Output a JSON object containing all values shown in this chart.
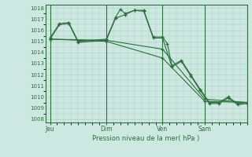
{
  "xlabel": "Pression niveau de la mer( hPa )",
  "ylim": [
    1008,
    1018
  ],
  "yticks": [
    1008,
    1009,
    1010,
    1011,
    1012,
    1013,
    1014,
    1015,
    1016,
    1017,
    1018
  ],
  "bg_color": "#cce8e0",
  "grid_color": "#aaccC4",
  "line_color": "#2d6e3e",
  "xtick_labels": [
    "Jeu",
    "Dim",
    "Ven",
    "Sam"
  ],
  "xtick_positions": [
    0,
    24,
    48,
    66
  ],
  "xlim": [
    -2,
    84
  ],
  "vlines": [
    0,
    24,
    48,
    66
  ],
  "series1_x": [
    0,
    4,
    8,
    12,
    24,
    28,
    30,
    32,
    36,
    40,
    44,
    48,
    50,
    52,
    56,
    60,
    64,
    68,
    72,
    76,
    80,
    84
  ],
  "series1_y": [
    1015.3,
    1016.6,
    1016.7,
    1015.0,
    1015.2,
    1017.2,
    1017.9,
    1017.5,
    1017.8,
    1017.8,
    1015.4,
    1015.4,
    1014.8,
    1012.8,
    1013.3,
    1012.0,
    1010.7,
    1009.5,
    1009.5,
    1010.0,
    1009.4,
    1009.5
  ],
  "series2_x": [
    0,
    24,
    48,
    66,
    84
  ],
  "series2_y": [
    1015.2,
    1015.1,
    1014.3,
    1009.8,
    1009.5
  ],
  "series3_x": [
    0,
    24,
    48,
    66,
    84
  ],
  "series3_y": [
    1015.2,
    1015.0,
    1013.5,
    1009.6,
    1009.5
  ],
  "series4_x": [
    0,
    4,
    8,
    12,
    24,
    28,
    32,
    36,
    40,
    44,
    48,
    52,
    56,
    60,
    64,
    68,
    72,
    76,
    80,
    84
  ],
  "series4_y": [
    1015.2,
    1016.5,
    1016.6,
    1014.9,
    1015.1,
    1017.1,
    1017.4,
    1017.8,
    1017.7,
    1015.3,
    1015.3,
    1012.7,
    1013.2,
    1011.9,
    1010.6,
    1009.4,
    1009.4,
    1009.9,
    1009.3,
    1009.4
  ]
}
